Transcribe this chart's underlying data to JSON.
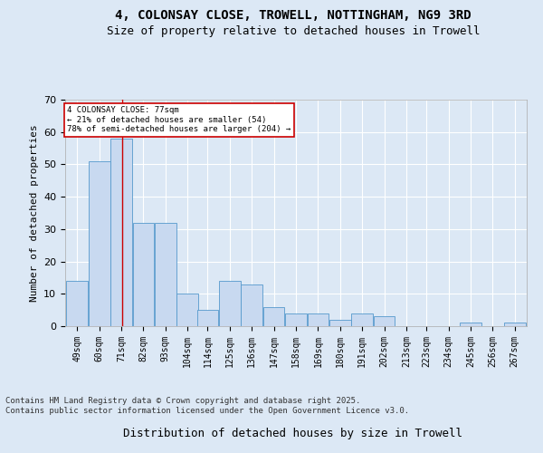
{
  "title_line1": "4, COLONSAY CLOSE, TROWELL, NOTTINGHAM, NG9 3RD",
  "title_line2": "Size of property relative to detached houses in Trowell",
  "xlabel": "Distribution of detached houses by size in Trowell",
  "ylabel": "Number of detached properties",
  "bar_color": "#c8d9f0",
  "bar_edge_color": "#5599cc",
  "background_color": "#dce8f5",
  "grid_color": "#ffffff",
  "red_line_x": 77,
  "annotation_text": "4 COLONSAY CLOSE: 77sqm\n← 21% of detached houses are smaller (54)\n78% of semi-detached houses are larger (204) →",
  "annotation_box_color": "#ffffff",
  "annotation_border_color": "#cc0000",
  "bin_lefts": [
    49,
    60,
    71,
    82,
    93,
    104,
    114,
    125,
    136,
    147,
    158,
    169,
    180,
    191,
    202,
    213,
    223,
    234,
    245,
    256,
    267
  ],
  "bin_width": 11,
  "counts": [
    14,
    51,
    58,
    32,
    32,
    10,
    5,
    14,
    13,
    6,
    4,
    4,
    2,
    4,
    3,
    0,
    0,
    0,
    1,
    0,
    1
  ],
  "ylim": [
    0,
    70
  ],
  "yticks": [
    0,
    10,
    20,
    30,
    40,
    50,
    60,
    70
  ],
  "footnote": "Contains HM Land Registry data © Crown copyright and database right 2025.\nContains public sector information licensed under the Open Government Licence v3.0.",
  "title_fontsize": 10,
  "subtitle_fontsize": 9,
  "axis_label_fontsize": 8,
  "tick_fontsize": 7,
  "footnote_fontsize": 6
}
